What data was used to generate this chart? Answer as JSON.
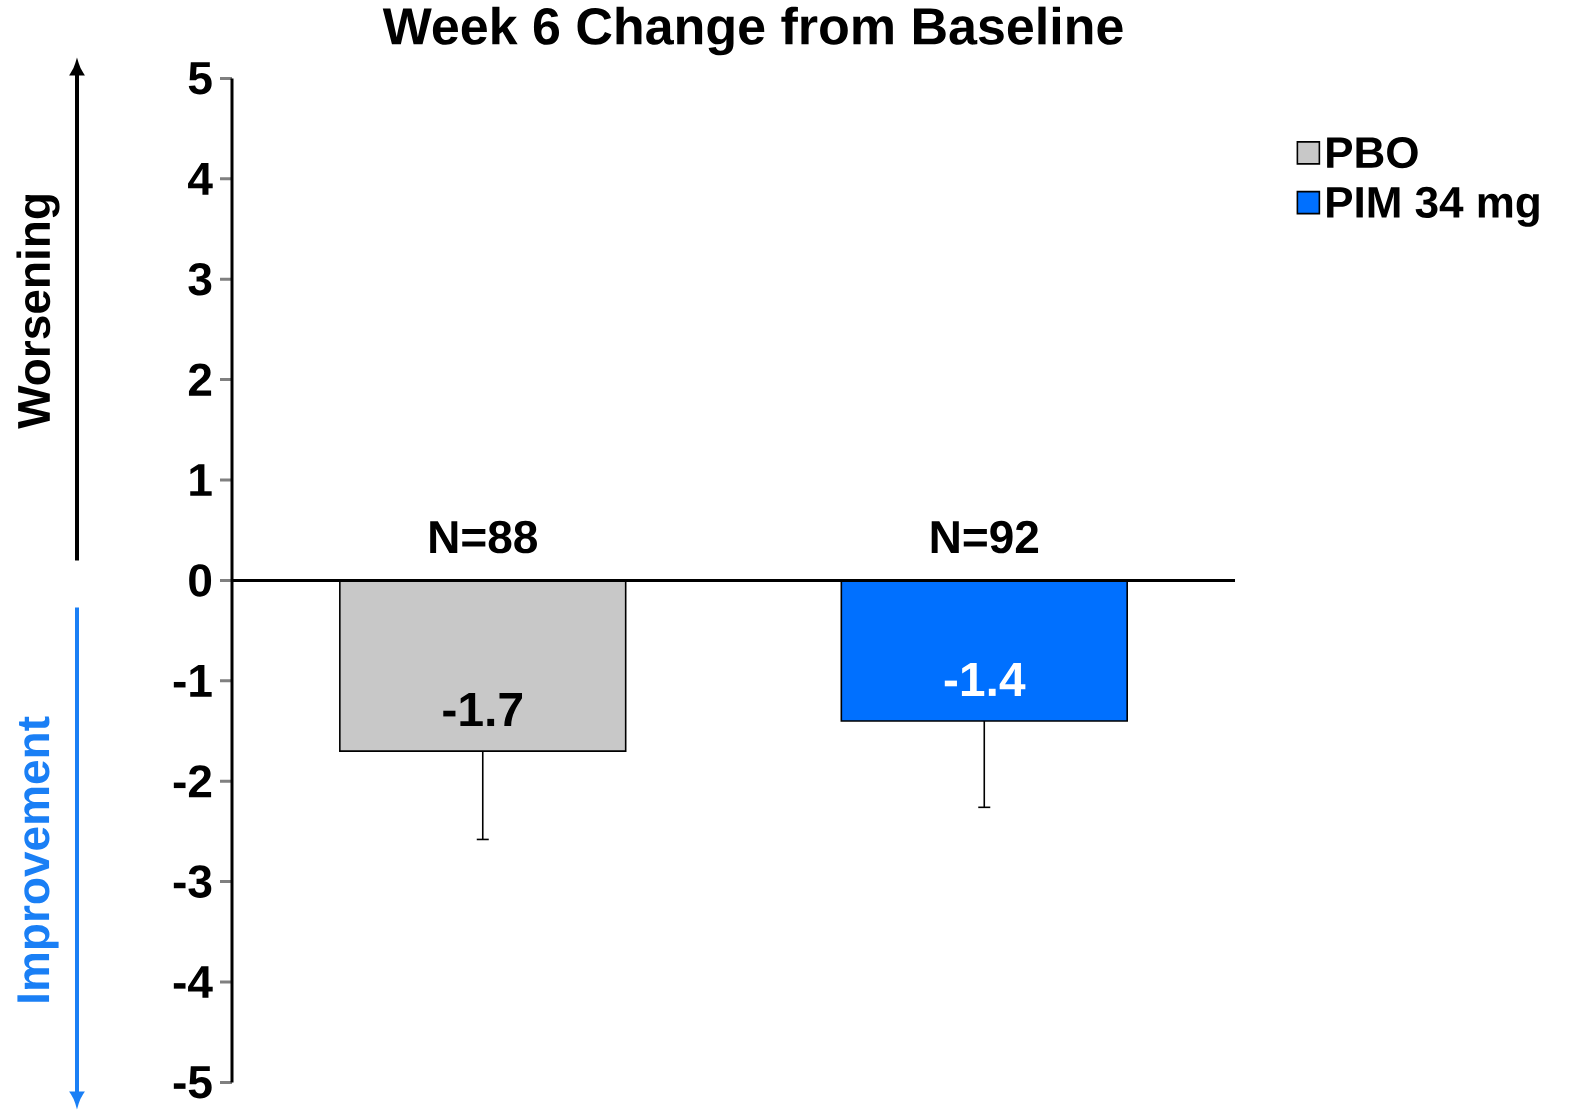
{
  "chart_data": {
    "type": "bar",
    "title": "Week 6 Change from Baseline",
    "categories": [
      null,
      null
    ],
    "series": [
      {
        "name": "PBO",
        "color": "#c8c8c8",
        "values": [
          -1.7,
          null
        ],
        "errors": [
          [
            -2.58,
            -1.7
          ],
          null
        ],
        "value_labels": [
          "-1.7",
          null
        ]
      },
      {
        "name": "PIM 34 mg",
        "color": "#0070ff",
        "values": [
          null,
          -1.4
        ],
        "errors": [
          null,
          [
            -2.26,
            -1.4
          ]
        ],
        "value_labels": [
          null,
          "-1.4"
        ]
      }
    ],
    "ylim": [
      -5,
      5
    ],
    "yticks": [
      -5,
      -4,
      -3,
      -2,
      -1,
      0,
      1,
      2,
      3,
      4,
      5
    ],
    "tick_labels": "y",
    "legend": "top right",
    "annotations": [
      {
        "text": "N=88",
        "y": 0
      },
      {
        "text": "N=92",
        "y": 0
      },
      "Worsening",
      "Improvement"
    ]
  }
}
